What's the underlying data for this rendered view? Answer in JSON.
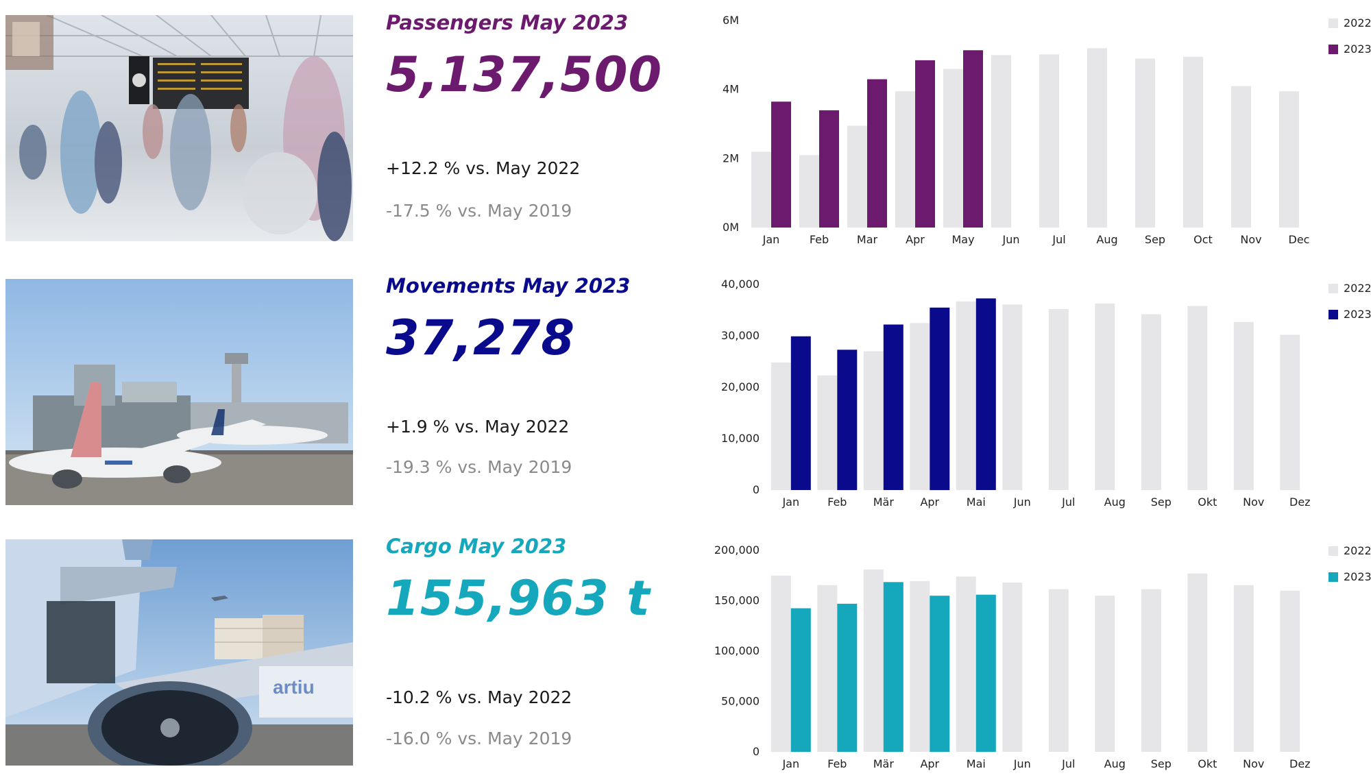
{
  "sections": [
    {
      "title": "Passengers May 2023",
      "value": "5,137,500",
      "comparison_2022": "+12.2 % vs. May 2022",
      "comparison_2019": "-17.5 % vs. May 2019",
      "accent": "#6b1a6e",
      "photo": "airport-terminal-crowd",
      "chart_data": {
        "type": "bar",
        "categories": [
          "Jan",
          "Feb",
          "Mar",
          "Apr",
          "May",
          "Jun",
          "Jul",
          "Aug",
          "Sep",
          "Oct",
          "Nov",
          "Dec"
        ],
        "series": [
          {
            "name": "2022",
            "color": "#e6e6e8",
            "values": [
              2.2,
              2.1,
              2.95,
              3.95,
              4.6,
              5.0,
              5.02,
              5.2,
              4.9,
              4.95,
              4.1,
              3.95
            ]
          },
          {
            "name": "2023",
            "color": "#6b1a6e",
            "values": [
              3.65,
              3.4,
              4.3,
              4.85,
              5.14,
              null,
              null,
              null,
              null,
              null,
              null,
              null
            ]
          }
        ],
        "ylim": [
          0,
          6
        ],
        "yticks": [
          0,
          2,
          4,
          6
        ],
        "ytick_labels": [
          "0M",
          "2M",
          "4M",
          "6M"
        ],
        "legend": "top-right"
      }
    },
    {
      "title": "Movements May 2023",
      "value": "37,278",
      "comparison_2022": "+1.9 % vs. May 2022",
      "comparison_2019": "-19.3 % vs. May 2019",
      "accent": "#0a0a8c",
      "photo": "airport-apron-aircraft",
      "chart_data": {
        "type": "bar",
        "categories": [
          "Jan",
          "Feb",
          "Mär",
          "Apr",
          "Mai",
          "Jun",
          "Jul",
          "Aug",
          "Sep",
          "Okt",
          "Nov",
          "Dez"
        ],
        "series": [
          {
            "name": "2022",
            "color": "#e6e6e8",
            "values": [
              24800,
              22300,
              27000,
              32500,
              36700,
              36100,
              35200,
              36300,
              34200,
              35800,
              32700,
              30200
            ]
          },
          {
            "name": "2023",
            "color": "#0a0a8c",
            "values": [
              29900,
              27300,
              32200,
              35500,
              37278,
              null,
              null,
              null,
              null,
              null,
              null,
              null
            ]
          }
        ],
        "ylim": [
          0,
          40000
        ],
        "yticks": [
          0,
          10000,
          20000,
          30000,
          40000
        ],
        "ytick_labels": [
          "0",
          "10,000",
          "20,000",
          "30,000",
          "40,000"
        ],
        "legend": "top-right"
      }
    },
    {
      "title": "Cargo May 2023",
      "value": "155,963 t",
      "comparison_2022": "-10.2 % vs. May 2022",
      "comparison_2019": "-16.0 % vs. May 2019",
      "accent": "#15a8bd",
      "photo": "cargo-aircraft-loading",
      "chart_data": {
        "type": "bar",
        "categories": [
          "Jan",
          "Feb",
          "Mär",
          "Apr",
          "Mai",
          "Jun",
          "Jul",
          "Aug",
          "Sep",
          "Okt",
          "Nov",
          "Dez"
        ],
        "series": [
          {
            "name": "2022",
            "color": "#e6e6e8",
            "values": [
              175000,
              165500,
              181000,
              169500,
              174000,
              168000,
              161500,
              155000,
              161500,
              177000,
              165500,
              160000
            ]
          },
          {
            "name": "2023",
            "color": "#15a8bd",
            "values": [
              142500,
              147000,
              168500,
              155000,
              155963,
              null,
              null,
              null,
              null,
              null,
              null,
              null
            ]
          }
        ],
        "ylim": [
          0,
          200000
        ],
        "yticks": [
          0,
          50000,
          100000,
          150000,
          200000
        ],
        "ytick_labels": [
          "0",
          "50,000",
          "100,000",
          "150,000",
          "200,000"
        ],
        "legend": "top-right"
      }
    }
  ]
}
